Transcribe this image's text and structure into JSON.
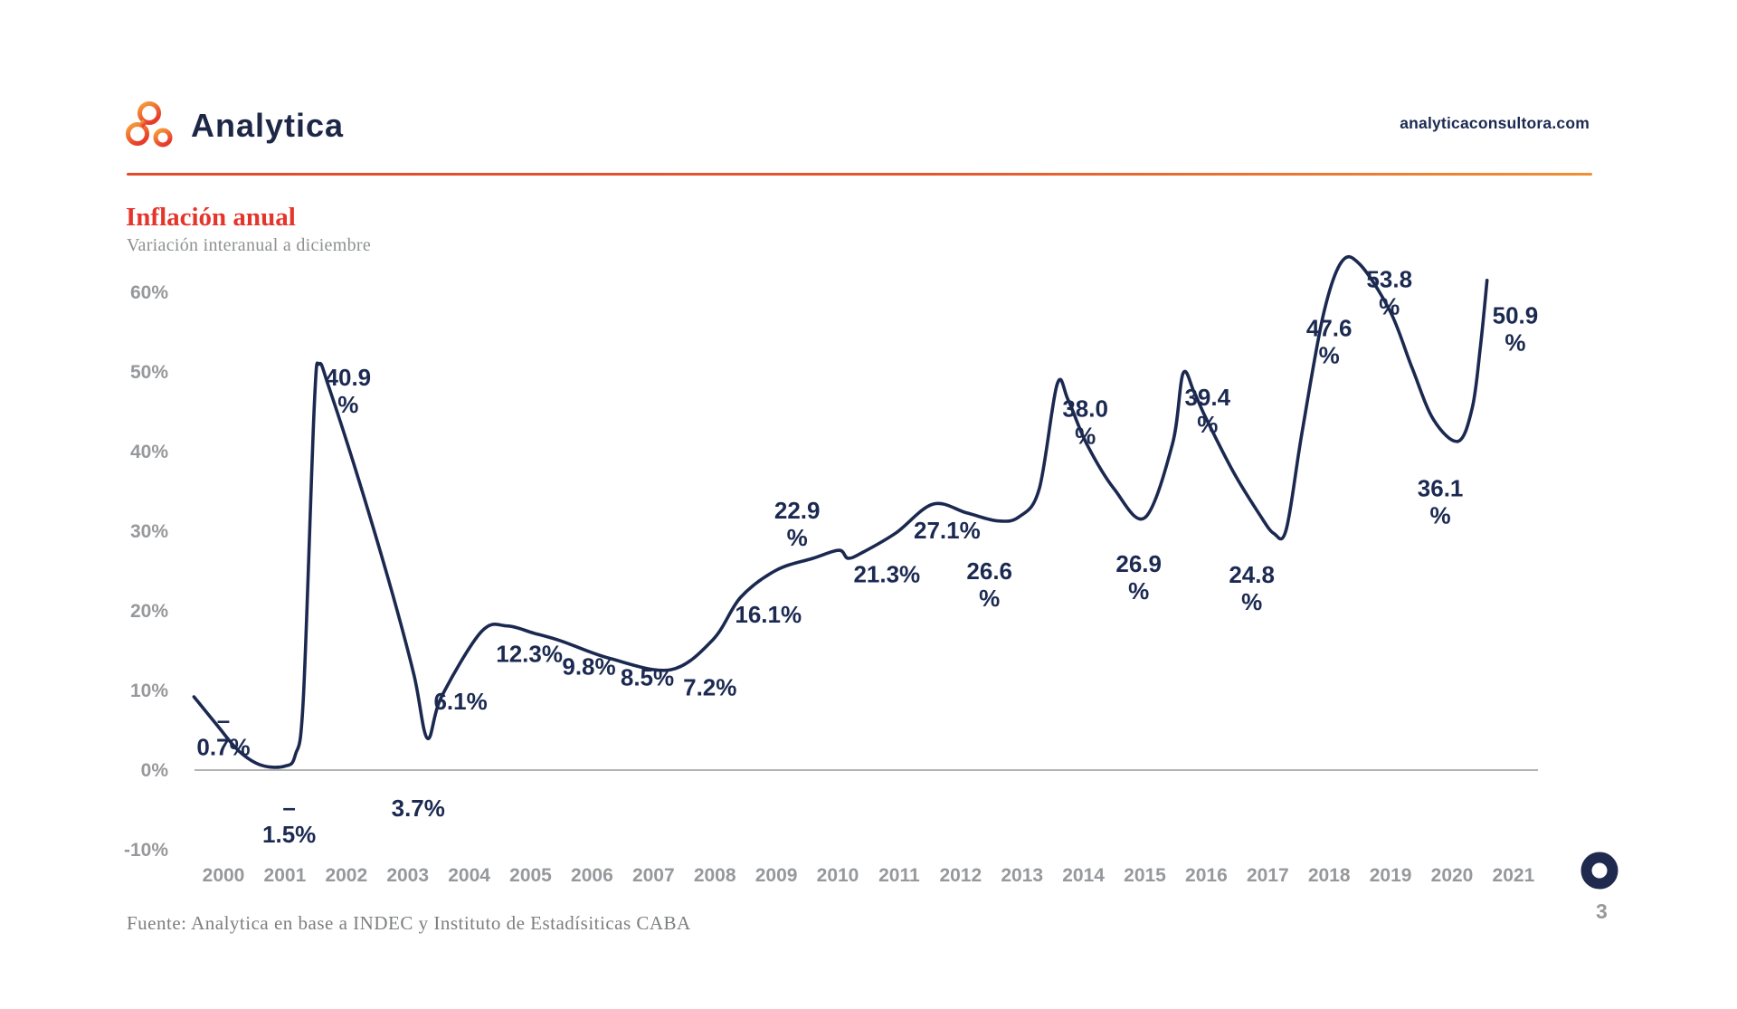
{
  "header": {
    "brand": "Analytica",
    "website": "analyticaconsultora.com"
  },
  "title": "Inflación anual",
  "subtitle": "Variación interanual a diciembre",
  "footer": {
    "source": "Fuente: Analytica en base a INDEC y Instituto de Estadísiticas CABA",
    "page_number": "3"
  },
  "colors": {
    "line": "#1b2950",
    "data_label": "#1c2a52",
    "axis_text": "#96989b",
    "zero_line": "#b3b3b3",
    "title_red": "#e5352b",
    "rule_orange": "#e4572e",
    "logo_orange_light": "#f5a23b",
    "logo_orange_dark": "#e8392a",
    "ring_navy": "#1f2a4e"
  },
  "chart_data": {
    "type": "line",
    "title": "Inflación anual",
    "subtitle": "Variación interanual a diciembre",
    "unit": "%",
    "source": "Fuente: Analytica en base a INDEC y Instituto de Estadísiticas CABA",
    "x": [
      2000,
      2001,
      2002,
      2003,
      2004,
      2005,
      2006,
      2007,
      2008,
      2009,
      2010,
      2011,
      2012,
      2013,
      2014,
      2015,
      2016,
      2017,
      2018,
      2019,
      2020,
      2021
    ],
    "values": [
      -0.7,
      -1.5,
      40.9,
      3.7,
      6.1,
      12.3,
      9.8,
      8.5,
      7.2,
      16.1,
      22.9,
      21.3,
      27.1,
      26.6,
      38.0,
      26.9,
      39.4,
      24.8,
      47.6,
      53.8,
      36.1,
      50.9
    ],
    "ylim": [
      -10,
      60
    ],
    "grid": false,
    "legend": false,
    "y_axis": {
      "ticks": [
        {
          "value": 60,
          "label": "60%"
        },
        {
          "value": 50,
          "label": "50%"
        },
        {
          "value": 40,
          "label": "40%"
        },
        {
          "value": 30,
          "label": "30%"
        },
        {
          "value": 20,
          "label": "20%"
        },
        {
          "value": 10,
          "label": "10%"
        },
        {
          "value": 0,
          "label": "0%"
        },
        {
          "value": -10,
          "label": "-10%"
        }
      ]
    },
    "x_axis": {
      "labels": [
        "2000",
        "2001",
        "2002",
        "2003",
        "2004",
        "2005",
        "2006",
        "2007",
        "2008",
        "2009",
        "2010",
        "2011",
        "2012",
        "2013",
        "2014",
        "2015",
        "2016",
        "2017",
        "2018",
        "2019",
        "2020",
        "2021"
      ]
    },
    "point_labels": [
      {
        "text": "–\n0.7%",
        "x": 2000.0,
        "y": 5.3
      },
      {
        "text": "–\n1.5%",
        "x": 2001.07,
        "y": -5.7
      },
      {
        "text": "40.9\n%",
        "x": 2002.03,
        "y": 48.3
      },
      {
        "text": "3.7%",
        "x": 2003.17,
        "y": -5.8
      },
      {
        "text": "6.1%",
        "x": 2003.86,
        "y": 7.6
      },
      {
        "text": "12.3%",
        "x": 2004.98,
        "y": 13.6
      },
      {
        "text": "9.8%",
        "x": 2005.95,
        "y": 12.0
      },
      {
        "text": "8.5%",
        "x": 2006.9,
        "y": 10.6
      },
      {
        "text": "7.2%",
        "x": 2007.92,
        "y": 9.4
      },
      {
        "text": "16.1%",
        "x": 2008.87,
        "y": 18.5
      },
      {
        "text": "22.9\n%",
        "x": 2009.34,
        "y": 31.6
      },
      {
        "text": "21.3%",
        "x": 2010.8,
        "y": 23.6
      },
      {
        "text": "27.1%",
        "x": 2011.78,
        "y": 29.1
      },
      {
        "text": "26.6\n%",
        "x": 2012.47,
        "y": 24.0
      },
      {
        "text": "38.0\n%",
        "x": 2014.03,
        "y": 44.4
      },
      {
        "text": "26.9\n%",
        "x": 2014.9,
        "y": 24.9
      },
      {
        "text": "39.4\n%",
        "x": 2016.02,
        "y": 45.8
      },
      {
        "text": "24.8\n%",
        "x": 2016.74,
        "y": 23.5
      },
      {
        "text": "47.6\n%",
        "x": 2018.0,
        "y": 54.5
      },
      {
        "text": "53.8\n%",
        "x": 2018.98,
        "y": 60.6
      },
      {
        "text": "36.1\n%",
        "x": 2019.81,
        "y": 34.4
      },
      {
        "text": "50.9\n%",
        "x": 2021.03,
        "y": 56.1
      }
    ],
    "curve": [
      [
        1999.52,
        9.2
      ],
      [
        1999.9,
        5.6
      ],
      [
        2000.25,
        2.4
      ],
      [
        2000.62,
        0.6
      ],
      [
        2001.0,
        0.5
      ],
      [
        2001.17,
        1.9
      ],
      [
        2001.3,
        9.0
      ],
      [
        2001.48,
        46.0
      ],
      [
        2001.56,
        51.0
      ],
      [
        2001.72,
        48.0
      ],
      [
        2002.2,
        36.5
      ],
      [
        2002.72,
        23.0
      ],
      [
        2003.1,
        12.0
      ],
      [
        2003.32,
        4.0
      ],
      [
        2003.55,
        9.2
      ],
      [
        2004.2,
        17.4
      ],
      [
        2004.62,
        18.1
      ],
      [
        2005.05,
        17.2
      ],
      [
        2005.5,
        16.2
      ],
      [
        2006.3,
        14.0
      ],
      [
        2007.28,
        12.6
      ],
      [
        2007.97,
        16.4
      ],
      [
        2008.42,
        21.7
      ],
      [
        2009.0,
        25.1
      ],
      [
        2009.6,
        26.6
      ],
      [
        2010.02,
        27.6
      ],
      [
        2010.17,
        26.6
      ],
      [
        2010.42,
        27.4
      ],
      [
        2010.95,
        29.8
      ],
      [
        2011.55,
        33.4
      ],
      [
        2012.1,
        32.3
      ],
      [
        2012.6,
        31.3
      ],
      [
        2012.95,
        31.8
      ],
      [
        2013.28,
        35.3
      ],
      [
        2013.57,
        48.4
      ],
      [
        2013.75,
        46.5
      ],
      [
        2014.05,
        41.0
      ],
      [
        2014.5,
        35.3
      ],
      [
        2015.0,
        31.7
      ],
      [
        2015.45,
        41.0
      ],
      [
        2015.62,
        49.8
      ],
      [
        2015.8,
        47.5
      ],
      [
        2016.0,
        44.1
      ],
      [
        2016.45,
        37.3
      ],
      [
        2016.85,
        32.3
      ],
      [
        2017.1,
        29.7
      ],
      [
        2017.3,
        30.2
      ],
      [
        2017.55,
        42.0
      ],
      [
        2017.9,
        57.0
      ],
      [
        2018.2,
        63.8
      ],
      [
        2018.5,
        63.5
      ],
      [
        2019.0,
        57.5
      ],
      [
        2019.35,
        50.5
      ],
      [
        2019.7,
        44.0
      ],
      [
        2020.1,
        41.3
      ],
      [
        2020.33,
        45.5
      ],
      [
        2020.46,
        53.0
      ],
      [
        2020.57,
        61.5
      ]
    ]
  }
}
